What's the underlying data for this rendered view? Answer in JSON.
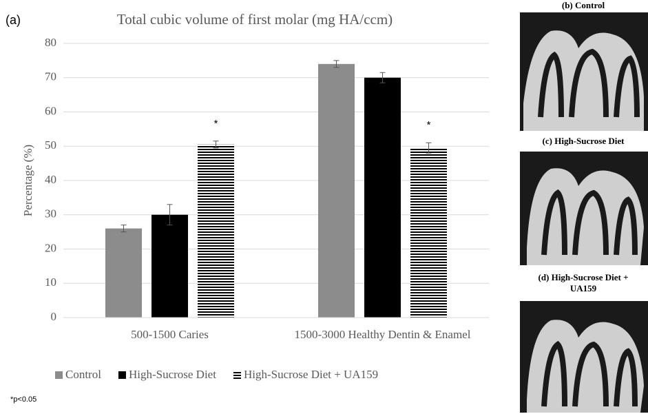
{
  "chart_data": {
    "type": "bar",
    "panel_label": "(a)",
    "title": "Total cubic volume of first molar (mg HA/ccm)",
    "y_label": "Percentage (%)",
    "categories": [
      "500-1500 Caries",
      "1500-3000 Healthy Dentin & Enamel"
    ],
    "series": [
      {
        "name": "Control",
        "color": "#8c8c8c",
        "values": [
          26,
          74
        ],
        "errors": [
          1,
          1
        ]
      },
      {
        "name": "High-Sucrose Diet",
        "color": "#000000",
        "values": [
          30,
          70
        ],
        "errors": [
          3,
          1.5
        ]
      },
      {
        "name": "High-Sucrose Diet + UA159",
        "color": "#000000",
        "pattern": "horizontal-stripes",
        "values": [
          50.5,
          49.5
        ],
        "errors": [
          1,
          1.5
        ]
      }
    ],
    "annotations": [
      {
        "text": "*",
        "category": 0,
        "series": 2
      },
      {
        "text": "*",
        "category": 1,
        "series": 2
      }
    ],
    "ylim": [
      0,
      80
    ],
    "yticks": [
      0,
      10,
      20,
      30,
      40,
      50,
      60,
      70,
      80
    ],
    "grid": true,
    "legend": "bottom",
    "footnote": "*p<0.05"
  },
  "images": [
    {
      "label": "(b) Control"
    },
    {
      "label": "(c) High-Sucrose Diet"
    },
    {
      "label": "(d) High-Sucrose Diet + UA159"
    }
  ]
}
